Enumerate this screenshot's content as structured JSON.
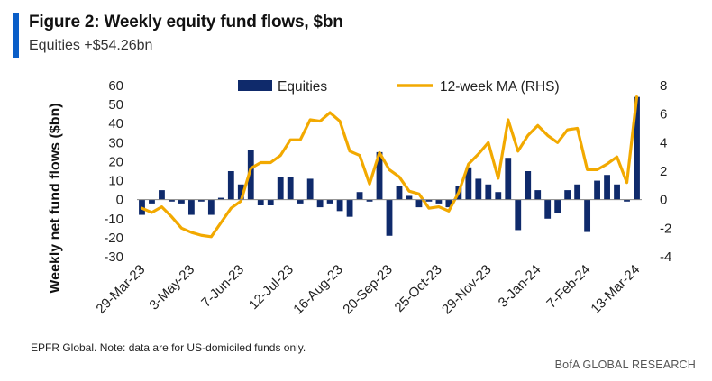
{
  "header": {
    "title": "Figure 2: Weekly equity fund flows, $bn",
    "subtitle": "Equities +$54.26bn"
  },
  "footer": {
    "note": "EPFR Global. Note: data are for US-domiciled funds only.",
    "brand": "BofA GLOBAL RESEARCH"
  },
  "colors": {
    "bars": "#0f2a6b",
    "line": "#f2a900",
    "accent": "#0a5ec8"
  },
  "chart_data": {
    "type": "bar",
    "ylabel": "Weekly net fund flows ($bn)",
    "y2label": "",
    "ylim": [
      -30,
      60
    ],
    "y2lim": [
      -4,
      8
    ],
    "yticks": [
      60,
      50,
      40,
      30,
      20,
      10,
      0,
      -10,
      -20,
      -30
    ],
    "y2ticks": [
      8,
      6,
      4,
      2,
      0,
      -2,
      -4
    ],
    "legend_position": "top",
    "x_tick_labels": [
      "29-Mar-23",
      "3-May-23",
      "7-Jun-23",
      "12-Jul-23",
      "16-Aug-23",
      "20-Sep-23",
      "25-Oct-23",
      "29-Nov-23",
      "3-Jan-24",
      "7-Feb-24",
      "13-Mar-24"
    ],
    "x_tick_indices": [
      0,
      5,
      10,
      15,
      20,
      25,
      30,
      35,
      40,
      45,
      50
    ],
    "series": [
      {
        "name": "Equities",
        "type": "bar",
        "axis": "left",
        "values": [
          -8,
          -2,
          5,
          -1,
          -2,
          -8,
          -1,
          -8,
          1,
          15,
          8,
          26,
          -3,
          -3,
          12,
          12,
          -2,
          11,
          -4,
          -2,
          -6,
          -9,
          4,
          -1,
          25,
          -19,
          7,
          2,
          -4,
          -1,
          -2,
          -4,
          7,
          17,
          11,
          8,
          4,
          22,
          -16,
          15,
          5,
          -10,
          -7,
          5,
          8,
          -17,
          10,
          13,
          8,
          -1,
          54
        ]
      },
      {
        "name": "12-week MA (RHS)",
        "type": "line",
        "axis": "right",
        "values": [
          -0.6,
          -0.9,
          -0.5,
          -1.2,
          -2.0,
          -2.3,
          -2.5,
          -2.6,
          -1.6,
          -0.6,
          -0.1,
          2.2,
          2.6,
          2.6,
          3.1,
          4.2,
          4.2,
          5.6,
          5.5,
          6.1,
          5.5,
          3.4,
          3.1,
          1.1,
          3.3,
          2.1,
          1.6,
          0.6,
          0.4,
          -0.6,
          -0.5,
          -0.8,
          0.5,
          2.5,
          3.2,
          4.0,
          1.5,
          5.6,
          3.4,
          4.5,
          5.2,
          4.5,
          4.0,
          4.9,
          5.0,
          2.1,
          2.1,
          2.5,
          3.0,
          1.2,
          7.2
        ]
      }
    ]
  }
}
